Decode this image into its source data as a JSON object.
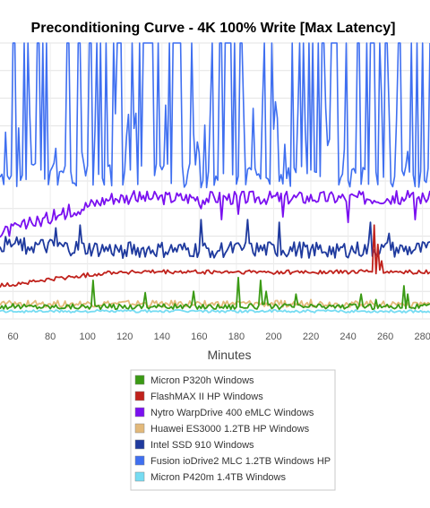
{
  "chart_data": {
    "type": "line",
    "title": "Preconditioning Curve - 4K 100% Write [Max Latency]",
    "xlabel": "Minutes",
    "ylabel": "",
    "x_ticks": [
      60,
      80,
      100,
      120,
      140,
      160,
      180,
      200,
      220,
      240,
      260,
      280
    ],
    "xlim": [
      53,
      284
    ],
    "ylim": [
      0,
      100
    ],
    "grid": true,
    "legend_position": "bottom",
    "series": [
      {
        "name": "Micron P320h Windows",
        "color": "#3a9a14",
        "base": 4.5,
        "noise": 1.0,
        "spikes": [
          [
            103,
            14
          ],
          [
            131,
            9.5
          ],
          [
            157,
            10
          ],
          [
            181,
            15
          ],
          [
            193,
            14
          ],
          [
            196,
            10
          ],
          [
            212,
            9
          ],
          [
            247,
            9
          ],
          [
            255,
            7
          ],
          [
            270,
            12
          ],
          [
            272,
            9
          ]
        ]
      },
      {
        "name": "FlashMAX II HP Windows",
        "color": "#c0221c",
        "base": 17,
        "start": 12,
        "noise": 0.8,
        "spikes": [
          [
            254,
            34
          ],
          [
            256,
            27
          ],
          [
            258,
            21
          ]
        ]
      },
      {
        "name": "Nytro WarpDrive 400 eMLC Windows",
        "color": "#7a10f0",
        "base": 44,
        "start": 31,
        "noise": 2.5,
        "spikes": [
          [
            161,
            40
          ],
          [
            172,
            36
          ],
          [
            181,
            38
          ],
          [
            205,
            37
          ],
          [
            240,
            35
          ],
          [
            276,
            36
          ]
        ]
      },
      {
        "name": "Huawei ES3000 1.2TB HP Windows",
        "color": "#e3b97a",
        "base": 5.5,
        "noise": 1.2,
        "spikes": [
          [
            220,
            7
          ],
          [
            244,
            6.5
          ],
          [
            276,
            6
          ]
        ]
      },
      {
        "name": "Intel SSD 910 Windows",
        "color": "#1f3a9e",
        "base": 25,
        "start": 27,
        "noise": 3.0,
        "spikes": [
          [
            83,
            33
          ],
          [
            96,
            34
          ],
          [
            161,
            36
          ],
          [
            186,
            36
          ],
          [
            203,
            35
          ],
          [
            252,
            35
          ],
          [
            262,
            31
          ]
        ]
      },
      {
        "name": "Fusion ioDrive2 MLC 1.2TB Windows HP",
        "color": "#3f6ff0",
        "base": 52,
        "noise": 4.5,
        "peak": 100
      },
      {
        "name": "Micron P420m 1.4TB Windows",
        "color": "#76dcf2",
        "base": 2.8,
        "noise": 0.5,
        "spikes": []
      }
    ]
  }
}
